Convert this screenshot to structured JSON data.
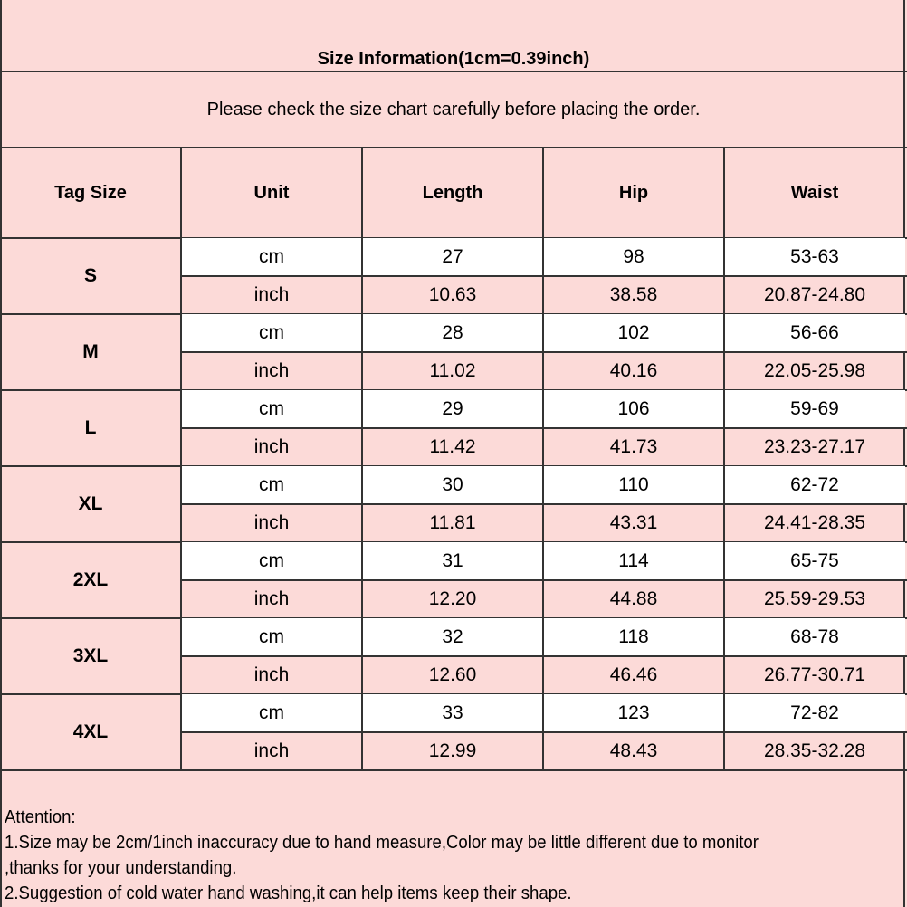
{
  "title": "Size Information(1cm=0.39inch)",
  "subtitle": "Please check the size chart carefully before placing the order.",
  "colors": {
    "background": "#fcdad8",
    "cm_row": "#ffffff",
    "border": "#333333"
  },
  "headers": [
    "Tag Size",
    "Unit",
    "Length",
    "Hip",
    "Waist"
  ],
  "rows": [
    {
      "size": "S",
      "cm": [
        "cm",
        "27",
        "98",
        "53-63"
      ],
      "inch": [
        "inch",
        "10.63",
        "38.58",
        "20.87-24.80"
      ]
    },
    {
      "size": "M",
      "cm": [
        "cm",
        "28",
        "102",
        "56-66"
      ],
      "inch": [
        "inch",
        "11.02",
        "40.16",
        "22.05-25.98"
      ]
    },
    {
      "size": "L",
      "cm": [
        "cm",
        "29",
        "106",
        "59-69"
      ],
      "inch": [
        "inch",
        "11.42",
        "41.73",
        "23.23-27.17"
      ]
    },
    {
      "size": "XL",
      "cm": [
        "cm",
        "30",
        "110",
        "62-72"
      ],
      "inch": [
        "inch",
        "11.81",
        "43.31",
        "24.41-28.35"
      ]
    },
    {
      "size": "2XL",
      "cm": [
        "cm",
        "31",
        "114",
        "65-75"
      ],
      "inch": [
        "inch",
        "12.20",
        "44.88",
        "25.59-29.53"
      ]
    },
    {
      "size": "3XL",
      "cm": [
        "cm",
        "32",
        "118",
        "68-78"
      ],
      "inch": [
        "inch",
        "12.60",
        "46.46",
        "26.77-30.71"
      ]
    },
    {
      "size": "4XL",
      "cm": [
        "cm",
        "33",
        "123",
        "72-82"
      ],
      "inch": [
        "inch",
        "12.99",
        "48.43",
        "28.35-32.28"
      ]
    }
  ],
  "attention": [
    "Attention:",
    "1.Size may be 2cm/1inch inaccuracy due to hand measure,Color may be little different due to monitor",
    ",thanks for your understanding.",
    "2.Suggestion of cold water hand washing,it can help items keep their shape."
  ]
}
